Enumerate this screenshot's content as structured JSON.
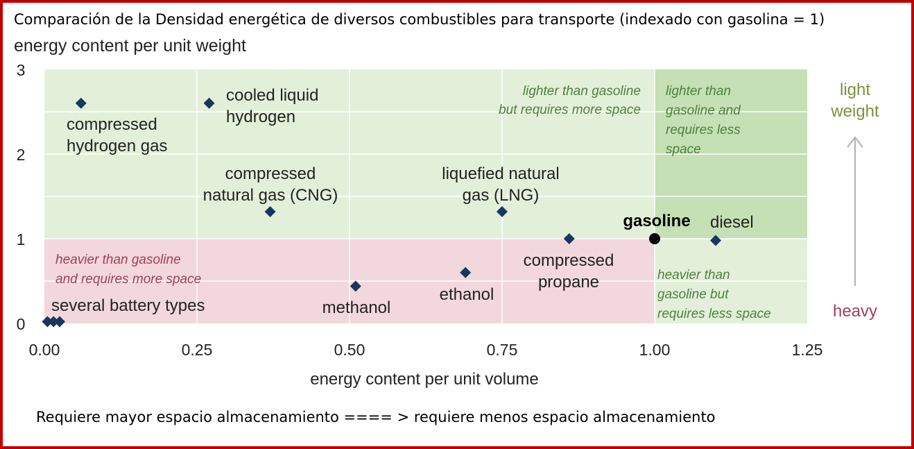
{
  "title": "Comparación de la Densidad energética de diversos combustibles para transporte  (indexado con gasolina  = 1)",
  "footer": "Requiere mayor espacio almacenamiento ==== > requiere menos espacio almacenamiento",
  "chart_data": {
    "type": "scatter",
    "xlabel": "energy content per unit volume",
    "ylabel": "energy content per unit weight",
    "xlim": [
      0,
      1.25
    ],
    "ylim": [
      0,
      3
    ],
    "x_ticks": [
      "0.00",
      "0.25",
      "0.50",
      "0.75",
      "1.00",
      "1.25"
    ],
    "y_ticks": [
      "0",
      "1",
      "2",
      "3"
    ],
    "grid": true,
    "points": [
      {
        "label": "compressed hydrogen gas",
        "x": 0.06,
        "y": 2.6
      },
      {
        "label": "cooled liquid hydrogen",
        "x": 0.27,
        "y": 2.6
      },
      {
        "label": "compressed natural gas (CNG)",
        "x": 0.37,
        "y": 1.32
      },
      {
        "label": "liquefied natural gas (LNG)",
        "x": 0.75,
        "y": 1.32
      },
      {
        "label": "gasoline",
        "x": 1.0,
        "y": 1.0
      },
      {
        "label": "diesel",
        "x": 1.1,
        "y": 0.98
      },
      {
        "label": "compressed propane",
        "x": 0.86,
        "y": 1.0
      },
      {
        "label": "ethanol",
        "x": 0.69,
        "y": 0.6
      },
      {
        "label": "methanol",
        "x": 0.51,
        "y": 0.44
      },
      {
        "label": "several battery types",
        "x": 0.005,
        "y": 0.02
      },
      {
        "label": "",
        "x": 0.015,
        "y": 0.02
      },
      {
        "label": "",
        "x": 0.025,
        "y": 0.02
      }
    ],
    "point_labels": {
      "compressed_hydrogen": [
        "compressed",
        "hydrogen gas"
      ],
      "cooled_hydrogen": [
        "cooled liquid",
        "hydrogen"
      ],
      "cng": [
        "compressed",
        "natural gas (CNG)"
      ],
      "lng": [
        "liquefied natural",
        "gas (LNG)"
      ],
      "gasoline": [
        "gasoline"
      ],
      "diesel": [
        "diesel"
      ],
      "propane": [
        "compressed",
        "propane"
      ],
      "ethanol": [
        "ethanol"
      ],
      "methanol": [
        "methanol"
      ],
      "battery": [
        "several battery types"
      ]
    },
    "regions": [
      {
        "name": "lighter-more-space",
        "text": [
          "lighter than gasoline",
          "but requires more space"
        ],
        "color": "#e2f0d9"
      },
      {
        "name": "lighter-less-space",
        "text": [
          "lighter than",
          "gasoline and",
          "requires less",
          "space"
        ],
        "color": "#c5e0b4"
      },
      {
        "name": "heavier-more-space",
        "text": [
          "heavier than gasoline",
          "and requires more space"
        ],
        "color": "#f2d7dc"
      },
      {
        "name": "heavier-less-space",
        "text": [
          "heavier than",
          "gasoline but",
          "requires less space"
        ],
        "color": "#e2f0d9"
      }
    ],
    "side_labels": {
      "light": [
        "light",
        "weight"
      ],
      "heavy": "heavy"
    },
    "colors": {
      "marker": "#17375e",
      "gasoline_marker": "#000000",
      "light_text": "#77933c",
      "light_region_text": "#4f7f3f",
      "heavy_text": "#a0405a",
      "axis_text": "#222222",
      "border": "#c00000"
    }
  }
}
